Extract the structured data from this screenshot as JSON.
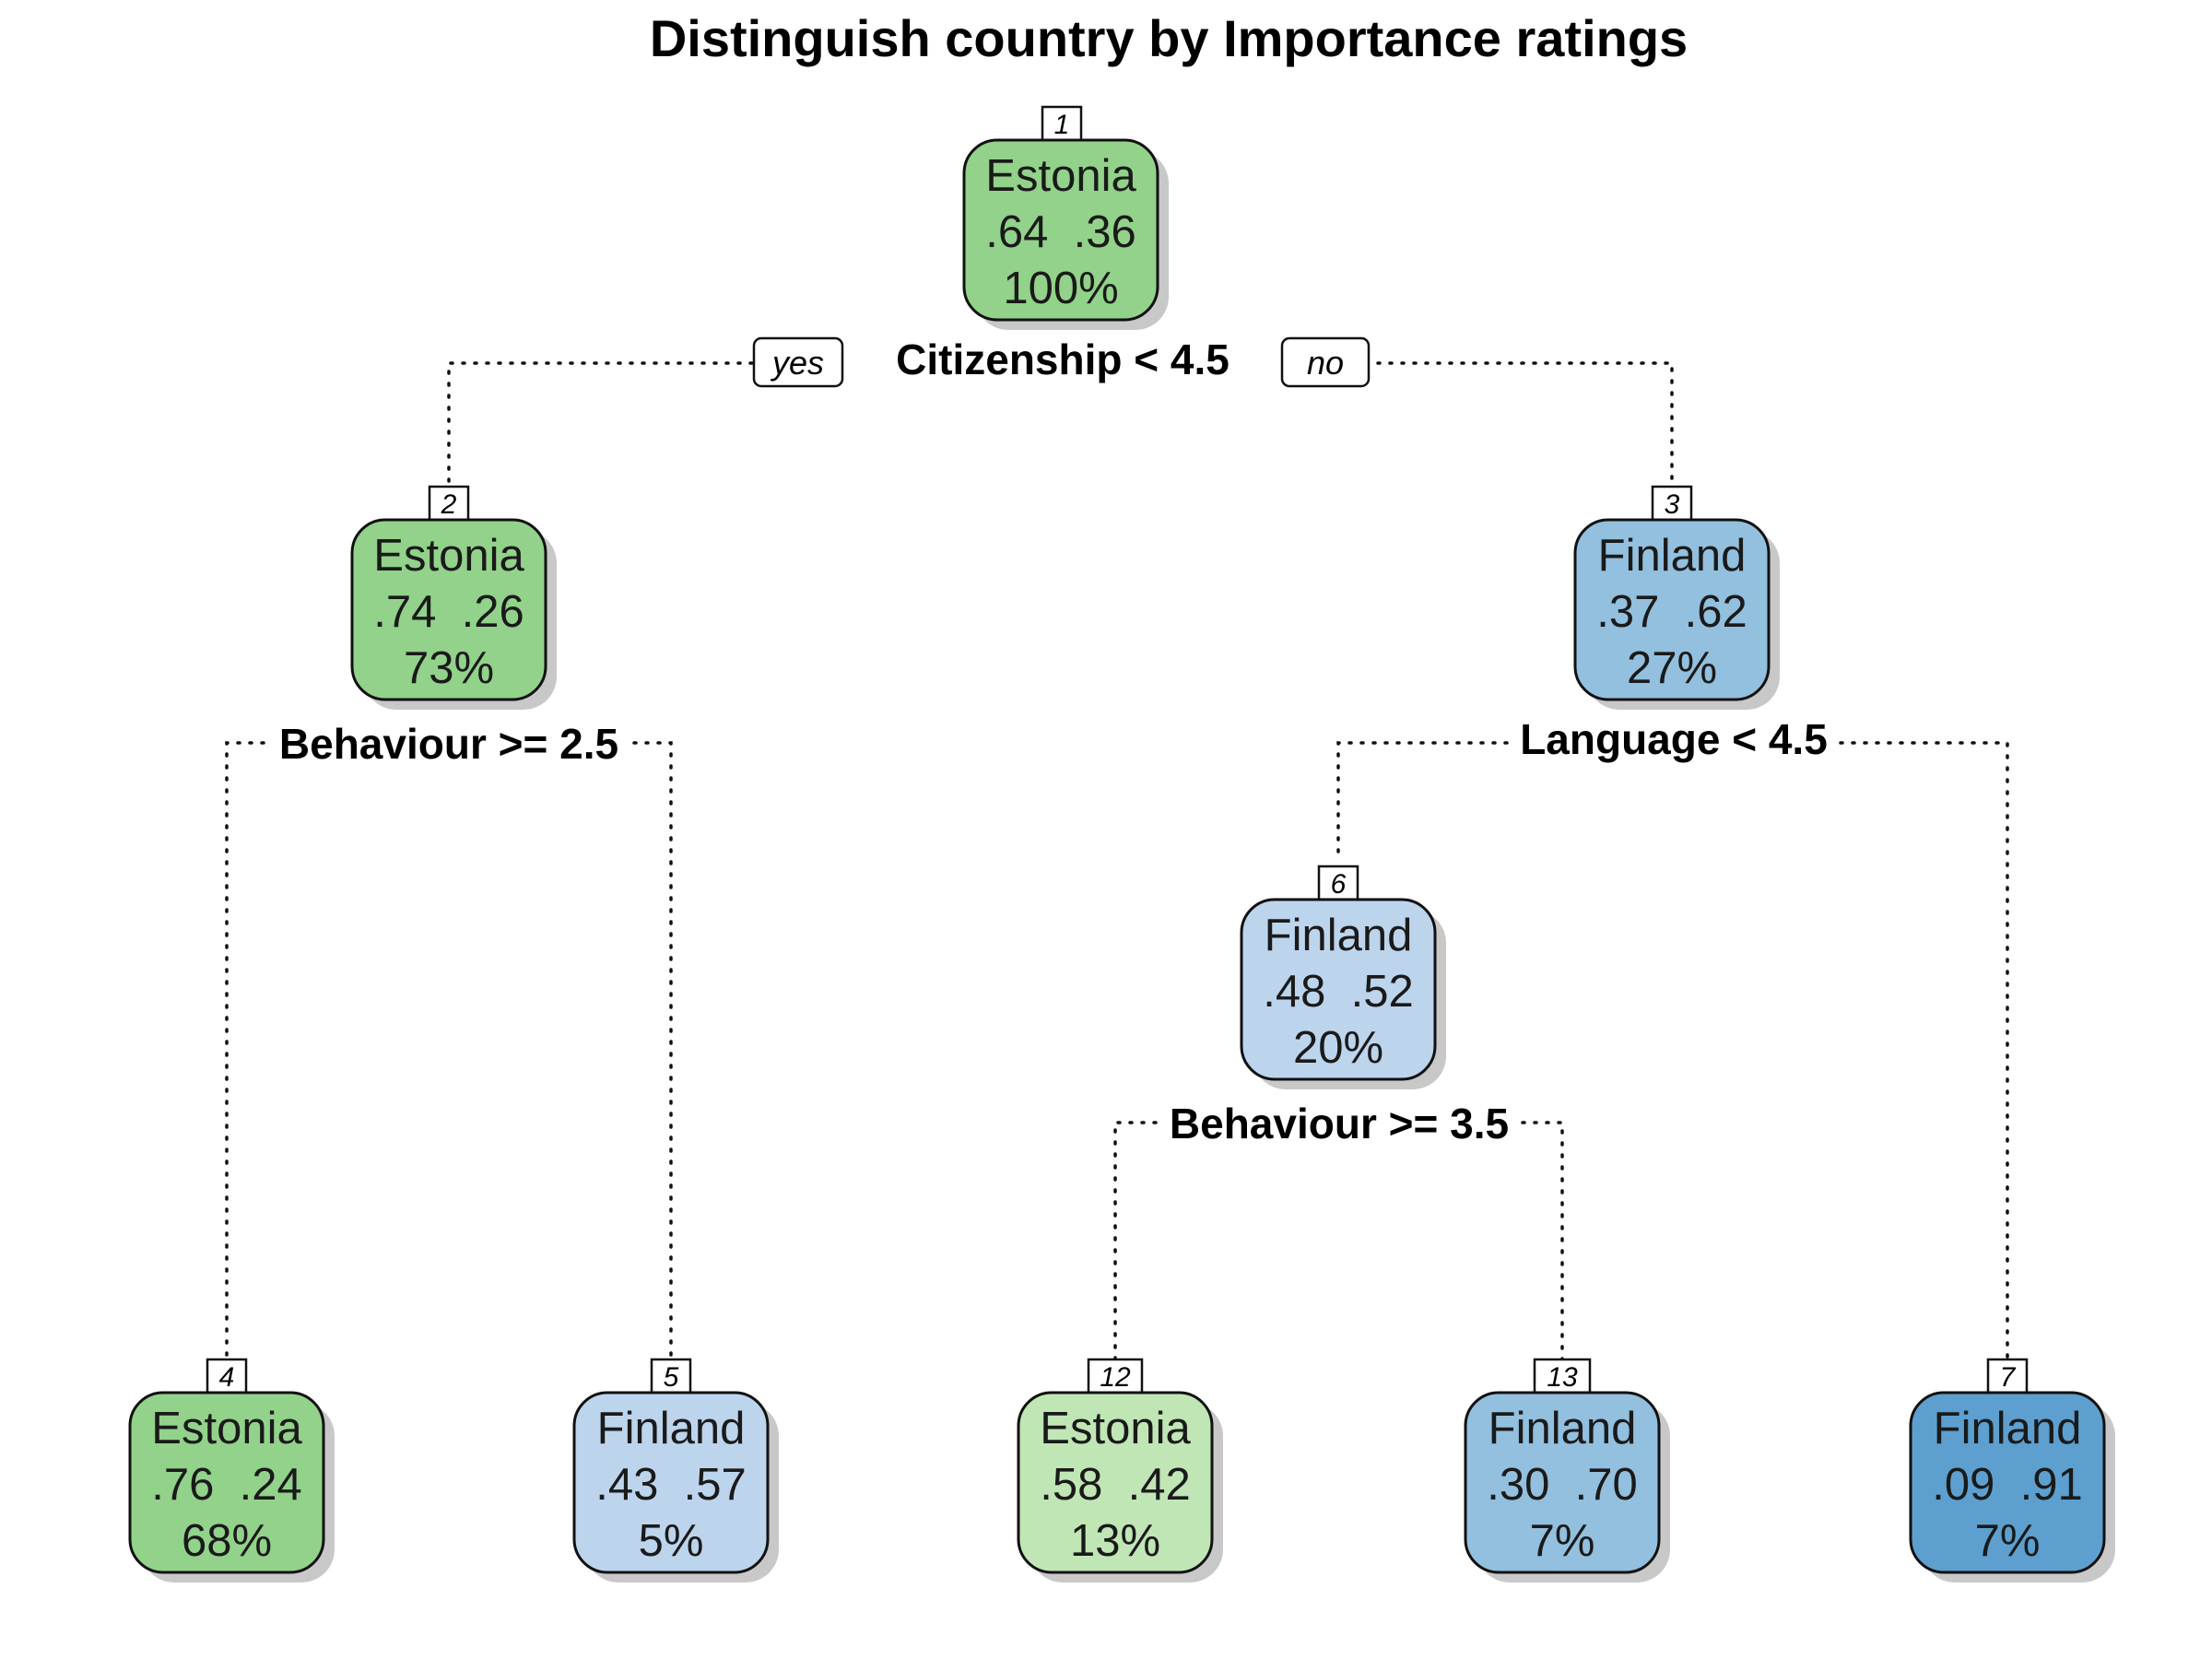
{
  "title": "Distinguish country by Importance ratings",
  "colors": {
    "green_dark": "#92d28a",
    "green_light": "#c0e6b5",
    "blue_light": "#bdd4ed",
    "blue_mid": "#92c0de",
    "blue_dark": "#5da0cf"
  },
  "nodes": {
    "n1": {
      "num": "1",
      "cls": "Estonia",
      "probs": ".64  .36",
      "pct": "100%",
      "color": "green_dark"
    },
    "n2": {
      "num": "2",
      "cls": "Estonia",
      "probs": ".74  .26",
      "pct": "73%",
      "color": "green_dark"
    },
    "n3": {
      "num": "3",
      "cls": "Finland",
      "probs": ".37  .62",
      "pct": "27%",
      "color": "blue_mid"
    },
    "n4": {
      "num": "4",
      "cls": "Estonia",
      "probs": ".76  .24",
      "pct": "68%",
      "color": "green_dark"
    },
    "n5": {
      "num": "5",
      "cls": "Finland",
      "probs": ".43  .57",
      "pct": "5%",
      "color": "blue_light"
    },
    "n6": {
      "num": "6",
      "cls": "Finland",
      "probs": ".48  .52",
      "pct": "20%",
      "color": "blue_light"
    },
    "n7": {
      "num": "7",
      "cls": "Finland",
      "probs": ".09  .91",
      "pct": "7%",
      "color": "blue_dark"
    },
    "n12": {
      "num": "12",
      "cls": "Estonia",
      "probs": ".58  .42",
      "pct": "13%",
      "color": "green_light"
    },
    "n13": {
      "num": "13",
      "cls": "Finland",
      "probs": ".30  .70",
      "pct": "7%",
      "color": "blue_mid"
    }
  },
  "splits": {
    "s1": "Citizenship < 4.5",
    "s2": "Behaviour >= 2.5",
    "s3": "Language < 4.5",
    "s6": "Behaviour >= 3.5"
  },
  "branch_labels": {
    "yes": "yes",
    "no": "no"
  }
}
